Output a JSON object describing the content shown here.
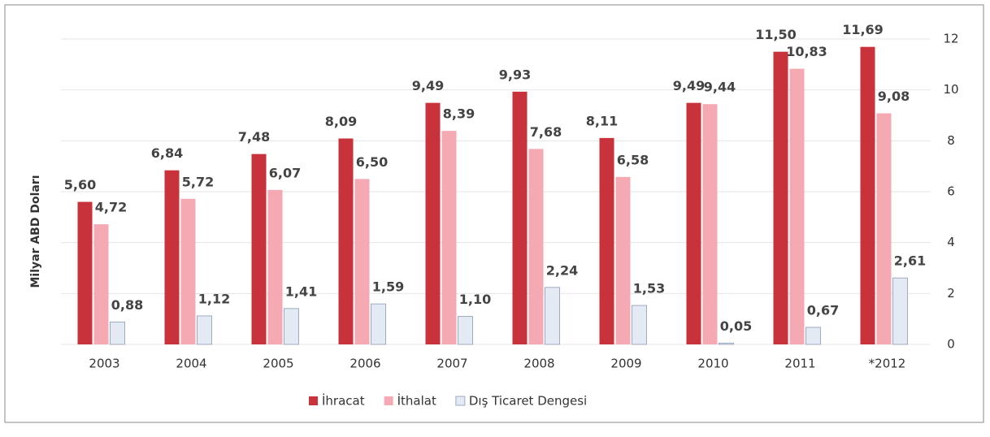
{
  "chart_data": {
    "type": "bar",
    "y_axis_label": "Milyar ABD Doları",
    "categories": [
      "2003",
      "2004",
      "2005",
      "2006",
      "2007",
      "2008",
      "2009",
      "2010",
      "2011",
      "*2012"
    ],
    "series": [
      {
        "name": "İhracat",
        "color": "#c8323a",
        "values": [
          5.6,
          6.84,
          7.48,
          8.09,
          9.49,
          9.93,
          8.11,
          9.49,
          11.5,
          11.69
        ],
        "value_labels": [
          "5,60",
          "6,84",
          "7,48",
          "8,09",
          "9,49",
          "9,93",
          "8,11",
          "9,49",
          "11,50",
          "11,69"
        ]
      },
      {
        "name": "İthalat",
        "color": "#f4a9b3",
        "values": [
          4.72,
          5.72,
          6.07,
          6.5,
          8.39,
          7.68,
          6.58,
          9.44,
          10.83,
          9.08
        ],
        "value_labels": [
          "4,72",
          "5,72",
          "6,07",
          "6,50",
          "8,39",
          "7,68",
          "6,58",
          "9,44",
          "10,83",
          "9,08"
        ]
      },
      {
        "name": "Dış Ticaret Dengesi",
        "color": "#e3eaf3",
        "values": [
          0.88,
          1.12,
          1.41,
          1.59,
          1.1,
          2.24,
          1.53,
          0.05,
          0.67,
          2.61
        ],
        "value_labels": [
          "0,88",
          "1,12",
          "1,41",
          "1,59",
          "1,10",
          "2,24",
          "1,53",
          "0,05",
          "0,67",
          "2,61"
        ]
      }
    ],
    "ylim": [
      0,
      12
    ],
    "yticks": [
      0,
      2,
      4,
      6,
      8,
      10,
      12
    ],
    "grid": true,
    "legend": "bottom"
  }
}
